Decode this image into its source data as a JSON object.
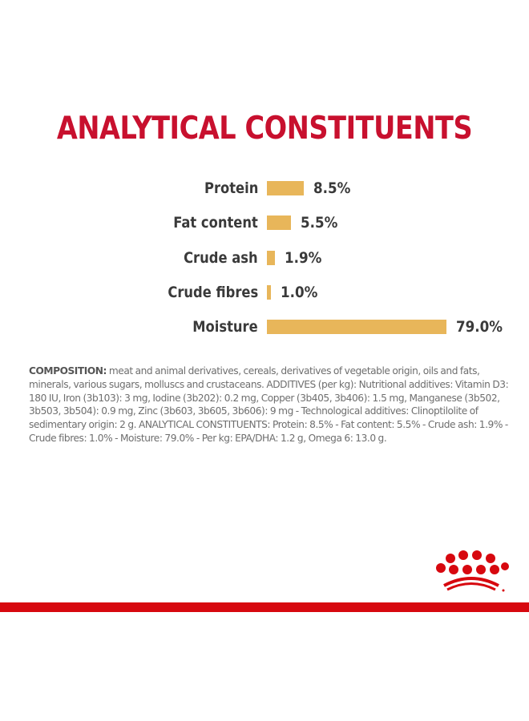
{
  "title": "ANALYTICAL CONSTITUENTS",
  "chart_data": {
    "type": "bar",
    "orientation": "horizontal",
    "title": "ANALYTICAL CONSTITUENTS",
    "categories": [
      "Protein",
      "Fat content",
      "Crude ash",
      "Crude fibres",
      "Moisture"
    ],
    "values": [
      8.5,
      5.5,
      1.9,
      1.0,
      79.0
    ],
    "value_labels": [
      "8.5%",
      "5.5%",
      "1.9%",
      "1.0%",
      "79.0%"
    ],
    "unit": "%",
    "xlabel": "",
    "ylabel": "",
    "grid": false,
    "legend": null,
    "bar_color": "#e8b65a"
  },
  "composition": {
    "heading": "COMPOSITION:",
    "text": " meat and animal derivatives, cereals, derivatives of vegetable origin, oils and fats, minerals, various sugars, molluscs and crustaceans. ADDITIVES (per kg): Nutritional additives: Vitamin D3: 180 IU, Iron (3b103): 3 mg, Iodine (3b202): 0.2 mg, Copper (3b405, 3b406): 1.5 mg, Manganese (3b502, 3b503, 3b504): 0.9 mg, Zinc (3b603, 3b605, 3b606): 9 mg - Technological additives: Clinoptilolite of sedimentary origin: 2 g. ANALYTICAL CONSTITUENTS: Protein: 8.5% - Fat content: 5.5% - Crude ash: 1.9% - Crude fibres: 1.0% - Moisture: 79.0% - Per kg: EPA/DHA: 1.2 g, Omega 6: 13.0 g."
  },
  "logo": {
    "icon": "crown-logo-icon",
    "color": "#d7080f"
  },
  "colors": {
    "title": "#c8102e",
    "bar": "#e8b65a",
    "accent_line": "#d7080f",
    "label_text": "#3a3a3a"
  }
}
